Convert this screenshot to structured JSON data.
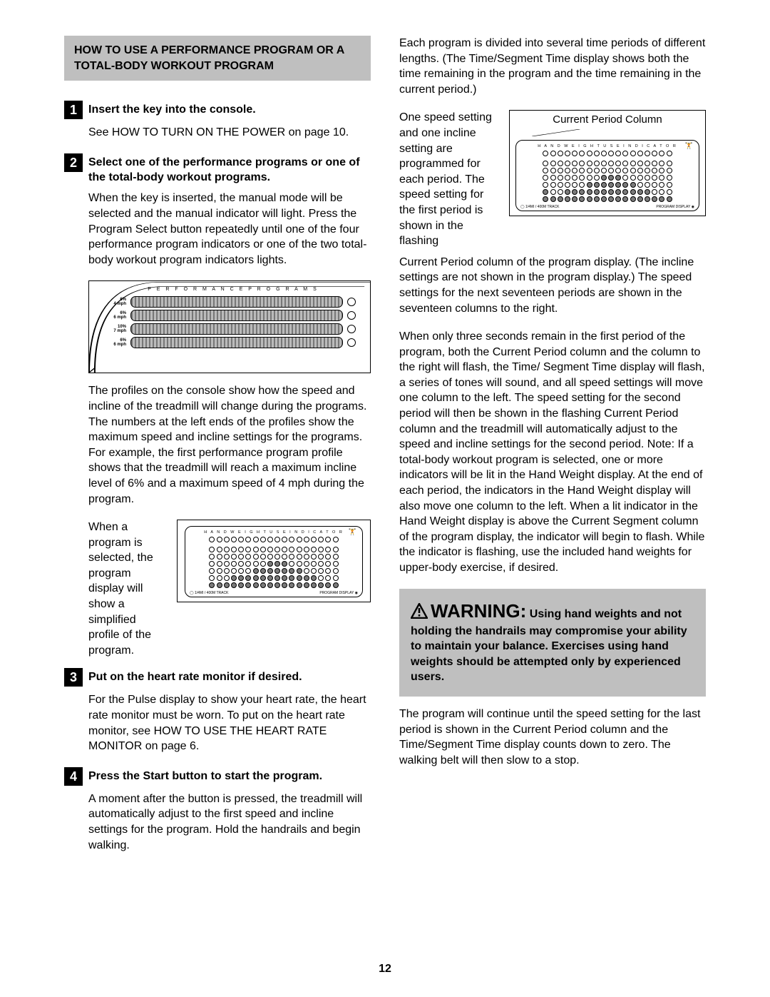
{
  "page_number": "12",
  "colors": {
    "header_bg": "#bfbfbf",
    "step_bg": "#000000",
    "step_fg": "#ffffff",
    "dot_fill": "#7a7a7a",
    "text": "#000000"
  },
  "left": {
    "header": "HOW TO USE A PERFORMANCE PROGRAM OR A TOTAL-BODY WORKOUT PROGRAM",
    "step1_num": "1",
    "step1_title": "Insert the key into the console.",
    "step1_body": "See HOW TO TURN ON THE POWER on page 10.",
    "step2_num": "2",
    "step2_title": "Select one of the performance programs or one of the total-body workout programs.",
    "step2_body1": "When the key is inserted, the manual mode will be selected and the manual indicator will light. Press the Program Select button repeatedly until one of the four performance program indicators or one of the two total-body workout program indicators lights.",
    "perf_title": "P E R F O R M A N C E   P R O G R A M S",
    "perf_rows": [
      {
        "incline": "6%",
        "speed": "4 mph"
      },
      {
        "incline": "6%",
        "speed": "6 mph"
      },
      {
        "incline": "10%",
        "speed": "7 mph"
      },
      {
        "incline": "6%",
        "speed": "6 mph"
      }
    ],
    "step2_body2": "The profiles on the console show how the speed and incline of the treadmill will change during the programs. The numbers at the left ends of the profiles show the maximum speed and incline settings for the programs. For example, the first performance program profile shows that the treadmill will reach a maximum incline level of 6% and a maximum speed of 4 mph during the program.",
    "inline_text": "When a program is selected, the program display will show a simplified profile of the program.",
    "display": {
      "title": "H A N D   W E I G H T   U S E   I N D I C A T O R",
      "cols": 18,
      "indicator_row": 1,
      "data_rows": 6,
      "fill_pattern": [
        "000000000000000000",
        "000000000000000000",
        "000000001110000000",
        "000000111111100000",
        "000111111111111000",
        "111111111111111111"
      ],
      "foot_left": "◯ 1/4MI / 400M TRACK",
      "foot_right": "PROGRAM DISPLAY ◉"
    },
    "step3_num": "3",
    "step3_title": "Put on the heart rate monitor if desired.",
    "step3_body": "For the Pulse display to show your heart rate, the heart rate monitor must be worn. To put on the heart rate monitor, see HOW TO USE THE HEART RATE MONITOR on page 6.",
    "step4_num": "4",
    "step4_title": "Press the Start button to start the program.",
    "step4_body": "A moment after the button is pressed, the treadmill will automatically adjust to the first speed and incline settings for the program. Hold the handrails and begin walking."
  },
  "right": {
    "para1": "Each program is divided into several time periods of different lengths. (The Time/Segment Time display shows both the time remaining in the program and the time remaining in the current period.)",
    "inline_text": "One speed setting and one incline setting are programmed for each period. The speed setting for the first period is shown in the flashing",
    "cpc_label": "Current Period Column",
    "display": {
      "title": "H A N D   W E I G H T   U S E   I N D I C A T O R",
      "cols": 18,
      "indicator_row": 1,
      "data_rows": 6,
      "fill_pattern": [
        "000000000000000000",
        "000000000000000000",
        "000000001110000000",
        "000000111111100000",
        "100111111111111000",
        "111111111111111111"
      ],
      "foot_left": "◯ 1/4MI / 400M TRACK",
      "foot_right": "PROGRAM DISPLAY ◉"
    },
    "para2": "Current Period column of the program display. (The incline settings are not shown in the program display.) The speed settings for the next seventeen periods are shown in the seventeen columns to the right.",
    "para3": "When only three seconds remain in the first period of the program, both the Current Period column and the column to the right will flash, the Time/ Segment Time display will flash, a series of tones will sound, and all speed settings will move one column to the left. The speed setting for the second period will then be shown in the flashing Current Period column and the treadmill will automatically adjust to the speed and incline settings for the second period. Note: If a total-body workout program is selected, one or more indicators will be lit in the Hand Weight display. At the end of each period, the indicators in the Hand Weight display will also move one column to the left. When a lit indicator in the Hand Weight display is above the Current Segment column of the program display, the indicator will begin to flash. While the indicator is flashing, use the included hand weights for upper-body exercise, if desired.",
    "warning_lead": "WARNING:",
    "warning_body": " Using hand weights and not holding the handrails may compromise your ability to maintain your balance. Exercises using hand weights should be attempted only by experienced users.",
    "para4": "The program will continue until the speed setting for the last period is shown in the Current Period column and the Time/Segment Time display counts down to zero. The walking belt will then slow to a stop."
  }
}
